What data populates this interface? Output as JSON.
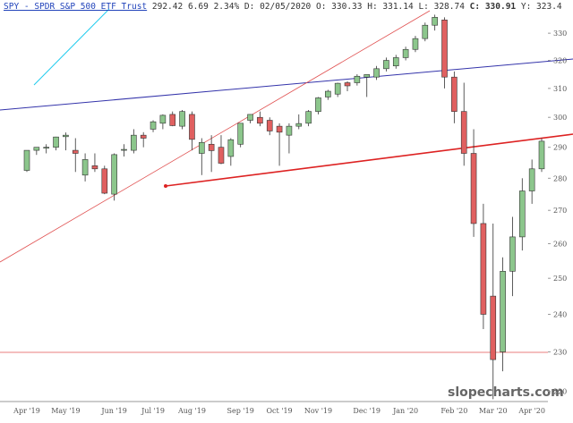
{
  "chart_data": {
    "type": "candlestick",
    "title": "SPY - SPDR S&P 500 ETF Trust",
    "quote": [
      "292.42",
      "6.69",
      "2.34%",
      "D: 02/05/2020",
      "O: 330.33",
      "H: 331.14",
      "L: 328.74",
      "C: 330.91",
      "Y: 323.4"
    ],
    "watermark": "slopecharts.com",
    "log_scale": true,
    "up_color": "#8cc68c",
    "down_color": "#e06060",
    "ylim": [
      217.2,
      339.2
    ],
    "yticks": [
      220,
      230,
      240,
      250,
      260,
      270,
      280,
      290,
      300,
      310,
      320,
      330
    ],
    "categories": [
      "Apr '19",
      null,
      null,
      null,
      "May '19",
      null,
      null,
      null,
      null,
      "Jun '19",
      null,
      null,
      null,
      "Jul '19",
      null,
      null,
      null,
      "Aug '19",
      null,
      null,
      null,
      null,
      "Sep '19",
      null,
      null,
      null,
      "Oct '19",
      null,
      null,
      null,
      "Nov '19",
      null,
      null,
      null,
      null,
      "Dec '19",
      null,
      null,
      null,
      "Jan '20",
      null,
      null,
      null,
      null,
      "Feb '20",
      null,
      null,
      null,
      "Mar '20",
      null,
      null,
      null,
      "Apr '20",
      null
    ],
    "open": [
      282.5,
      289,
      290,
      290,
      293.5,
      289,
      281,
      284,
      283,
      275,
      289,
      289,
      294,
      296,
      298,
      301,
      297,
      301,
      288,
      291,
      290,
      287,
      291,
      299,
      300,
      299,
      297,
      294,
      297,
      298,
      302,
      307,
      308,
      312,
      312,
      314,
      314,
      317,
      318,
      321,
      324,
      328,
      333,
      335,
      314,
      302,
      288,
      266,
      245,
      230,
      252,
      262,
      276,
      283
    ],
    "high": [
      289,
      290,
      291,
      293.5,
      294.9,
      293,
      288,
      288,
      284,
      288,
      291,
      296,
      295,
      299,
      301,
      302,
      302.5,
      302,
      293,
      294,
      294,
      293,
      298,
      301,
      302,
      300,
      298,
      298,
      301,
      302.5,
      307,
      309.5,
      312,
      312.5,
      315,
      314.5,
      318,
      321,
      322,
      325,
      329,
      334,
      337,
      336,
      316,
      312,
      296,
      272,
      266,
      256,
      268,
      280,
      286,
      293
    ],
    "low": [
      282,
      287.5,
      288,
      289,
      289,
      282,
      279,
      282,
      275,
      273,
      287,
      288,
      290,
      295,
      296,
      297,
      296,
      289,
      281,
      282,
      284.5,
      284,
      290,
      298,
      297,
      294,
      284,
      288,
      296,
      297,
      301,
      306,
      307,
      309,
      311,
      307,
      313,
      316,
      317,
      320,
      323,
      327,
      331,
      310,
      298,
      284,
      262,
      236,
      218,
      225,
      245,
      258,
      272,
      282
    ],
    "close": [
      289,
      290,
      290,
      293.4,
      294,
      288,
      286,
      283,
      275.3,
      287.6,
      289.3,
      294,
      293,
      298.5,
      300.7,
      297.2,
      302,
      292.6,
      291.6,
      288.9,
      284.8,
      292.5,
      298,
      301,
      298,
      295.4,
      295,
      297,
      297.9,
      302,
      306.7,
      309,
      311.8,
      310.9,
      314.3,
      314.9,
      317,
      320,
      321,
      324,
      328,
      333,
      336,
      314,
      302,
      288,
      266,
      240,
      228,
      252,
      262,
      276,
      283,
      292
    ]
  }
}
